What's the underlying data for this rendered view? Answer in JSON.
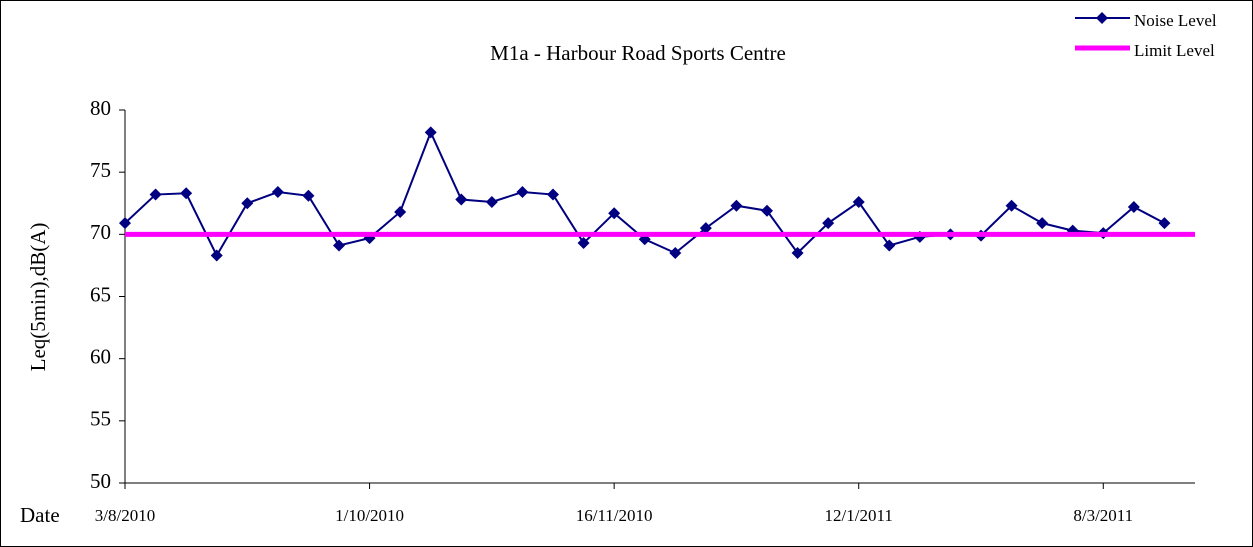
{
  "chart_data": {
    "type": "line",
    "title": "M1a - Harbour Road Sports Centre",
    "y_label": "Leq(5min),dB(A)",
    "x_label": "Date",
    "categories": [
      "3/8/2010",
      null,
      null,
      null,
      null,
      null,
      null,
      null,
      "1/10/2010",
      null,
      null,
      null,
      null,
      null,
      null,
      null,
      "16/11/2010",
      null,
      null,
      null,
      null,
      null,
      null,
      null,
      "12/1/2011",
      null,
      null,
      null,
      null,
      null,
      null,
      null,
      "8/3/2011",
      null,
      null,
      null
    ],
    "series": [
      {
        "name": "Noise Level",
        "color": "#000080",
        "marker": "diamond",
        "values": [
          70.9,
          73.2,
          73.3,
          68.3,
          72.5,
          73.4,
          73.1,
          69.1,
          69.7,
          71.8,
          78.2,
          72.8,
          72.6,
          73.4,
          73.2,
          69.3,
          71.7,
          69.6,
          68.5,
          70.5,
          72.3,
          71.9,
          68.5,
          70.9,
          72.6,
          69.1,
          69.8,
          70.0,
          69.9,
          72.3,
          70.9,
          70.3,
          70.1,
          72.2,
          70.9,
          null
        ]
      },
      {
        "name": "Limit Level",
        "color": "#ff00ff",
        "values": [
          70,
          70,
          70,
          70,
          70,
          70,
          70,
          70,
          70,
          70,
          70,
          70,
          70,
          70,
          70,
          70,
          70,
          70,
          70,
          70,
          70,
          70,
          70,
          70,
          70,
          70,
          70,
          70,
          70,
          70,
          70,
          70,
          70,
          70,
          70,
          70
        ]
      }
    ],
    "ylim": [
      50,
      80
    ],
    "yticks": [
      50,
      55,
      60,
      65,
      70,
      75,
      80
    ],
    "legend": "top-right"
  }
}
